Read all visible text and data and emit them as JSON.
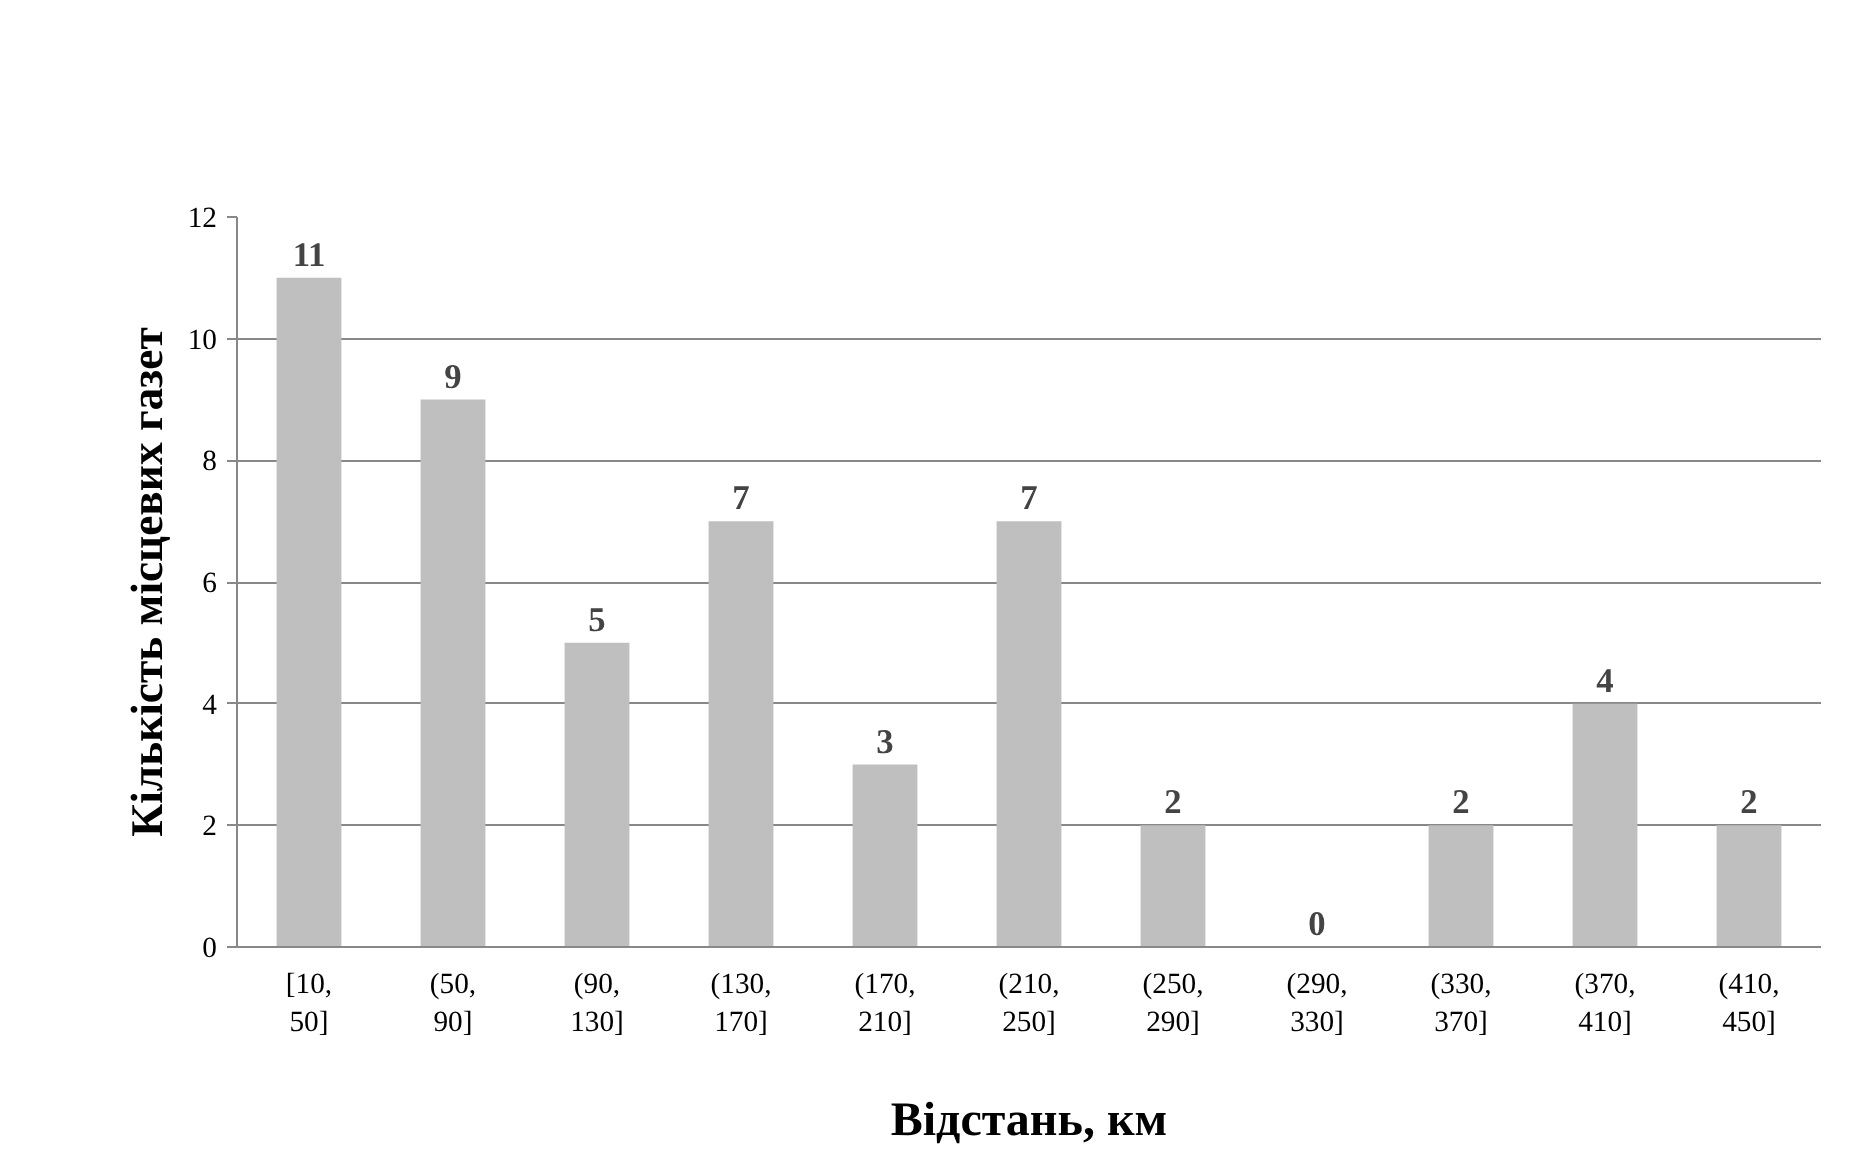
{
  "chart_data": {
    "type": "bar",
    "xlabel": "Відстань, км",
    "ylabel": "Кількість місцевих газет",
    "categories": [
      "[10, 50]",
      "(50, 90]",
      "(90, 130]",
      "(130, 170]",
      "(170, 210]",
      "(210, 250]",
      "(250, 290]",
      "(290, 330]",
      "(330, 370]",
      "(370, 410]",
      "(410, 450]"
    ],
    "values": [
      11,
      9,
      5,
      7,
      3,
      7,
      2,
      0,
      2,
      4,
      2
    ],
    "color": "#bfbfbf",
    "ylim": [
      0,
      12
    ],
    "yticks": [
      0,
      2,
      4,
      6,
      8,
      10,
      12
    ],
    "grid": "y",
    "data_labels": true
  }
}
